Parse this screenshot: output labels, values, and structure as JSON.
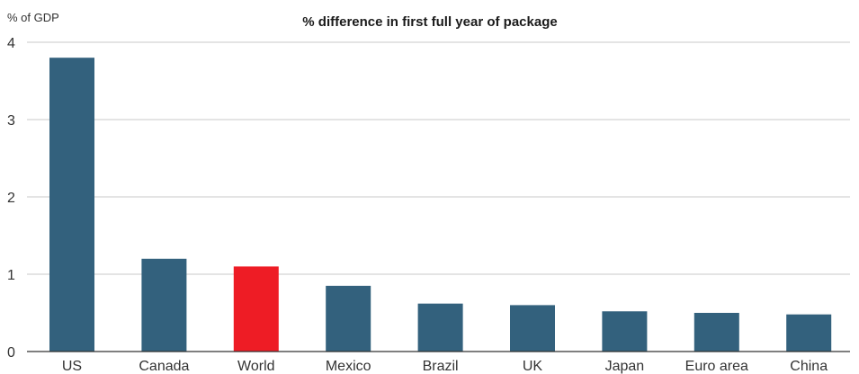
{
  "chart_data": {
    "type": "bar",
    "title": "% difference in first full year of package",
    "ylabel": "% of GDP",
    "xlabel": "",
    "categories": [
      "US",
      "Canada",
      "World",
      "Mexico",
      "Brazil",
      "UK",
      "Japan",
      "Euro area",
      "China"
    ],
    "values": [
      3.8,
      1.2,
      1.1,
      0.85,
      0.62,
      0.6,
      0.52,
      0.5,
      0.48
    ],
    "ylim": [
      0,
      4
    ],
    "yticks": [
      "0",
      "1",
      "2",
      "3",
      "4"
    ],
    "grid": true,
    "colors": {
      "bar": "#33617d",
      "highlight": "#ee1c25",
      "highlight_category": "World"
    }
  }
}
